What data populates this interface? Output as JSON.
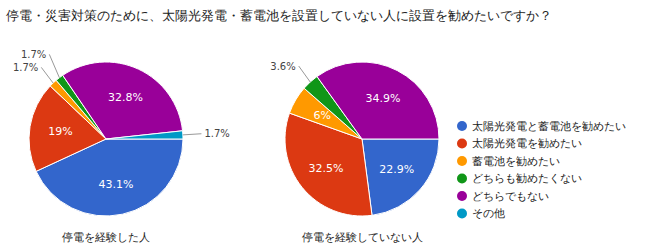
{
  "chart_data": {
    "type": "pie",
    "title": "停電・災害対策のために、太陽光発電・蓄電池を設置していない人に設置を勧めたいですか？",
    "categories": [
      "太陽光発電と蓄電池を勧めたい",
      "太陽光発電を勧めたい",
      "蓄電池を勧めたい",
      "どちらも勧めたくない",
      "どちらでもない",
      "その他"
    ],
    "colors": [
      "#3366cc",
      "#dc3912",
      "#ff9900",
      "#109618",
      "#990099",
      "#0099c6"
    ],
    "series": [
      {
        "name": "停電を経験した人",
        "values": [
          43.1,
          19,
          1.7,
          1.7,
          32.8,
          1.7
        ],
        "value_labels": [
          "43.1%",
          "19%",
          "1.7%",
          "1.7%",
          "32.8%",
          "1.7%"
        ]
      },
      {
        "name": "停電を経験していない人",
        "values": [
          22.9,
          32.5,
          6,
          3.6,
          34.9,
          null
        ],
        "value_labels": [
          "22.9%",
          "32.5%",
          "6%",
          "3.6%",
          "34.9%",
          null
        ]
      }
    ],
    "data_labels": true,
    "legend": "right"
  }
}
